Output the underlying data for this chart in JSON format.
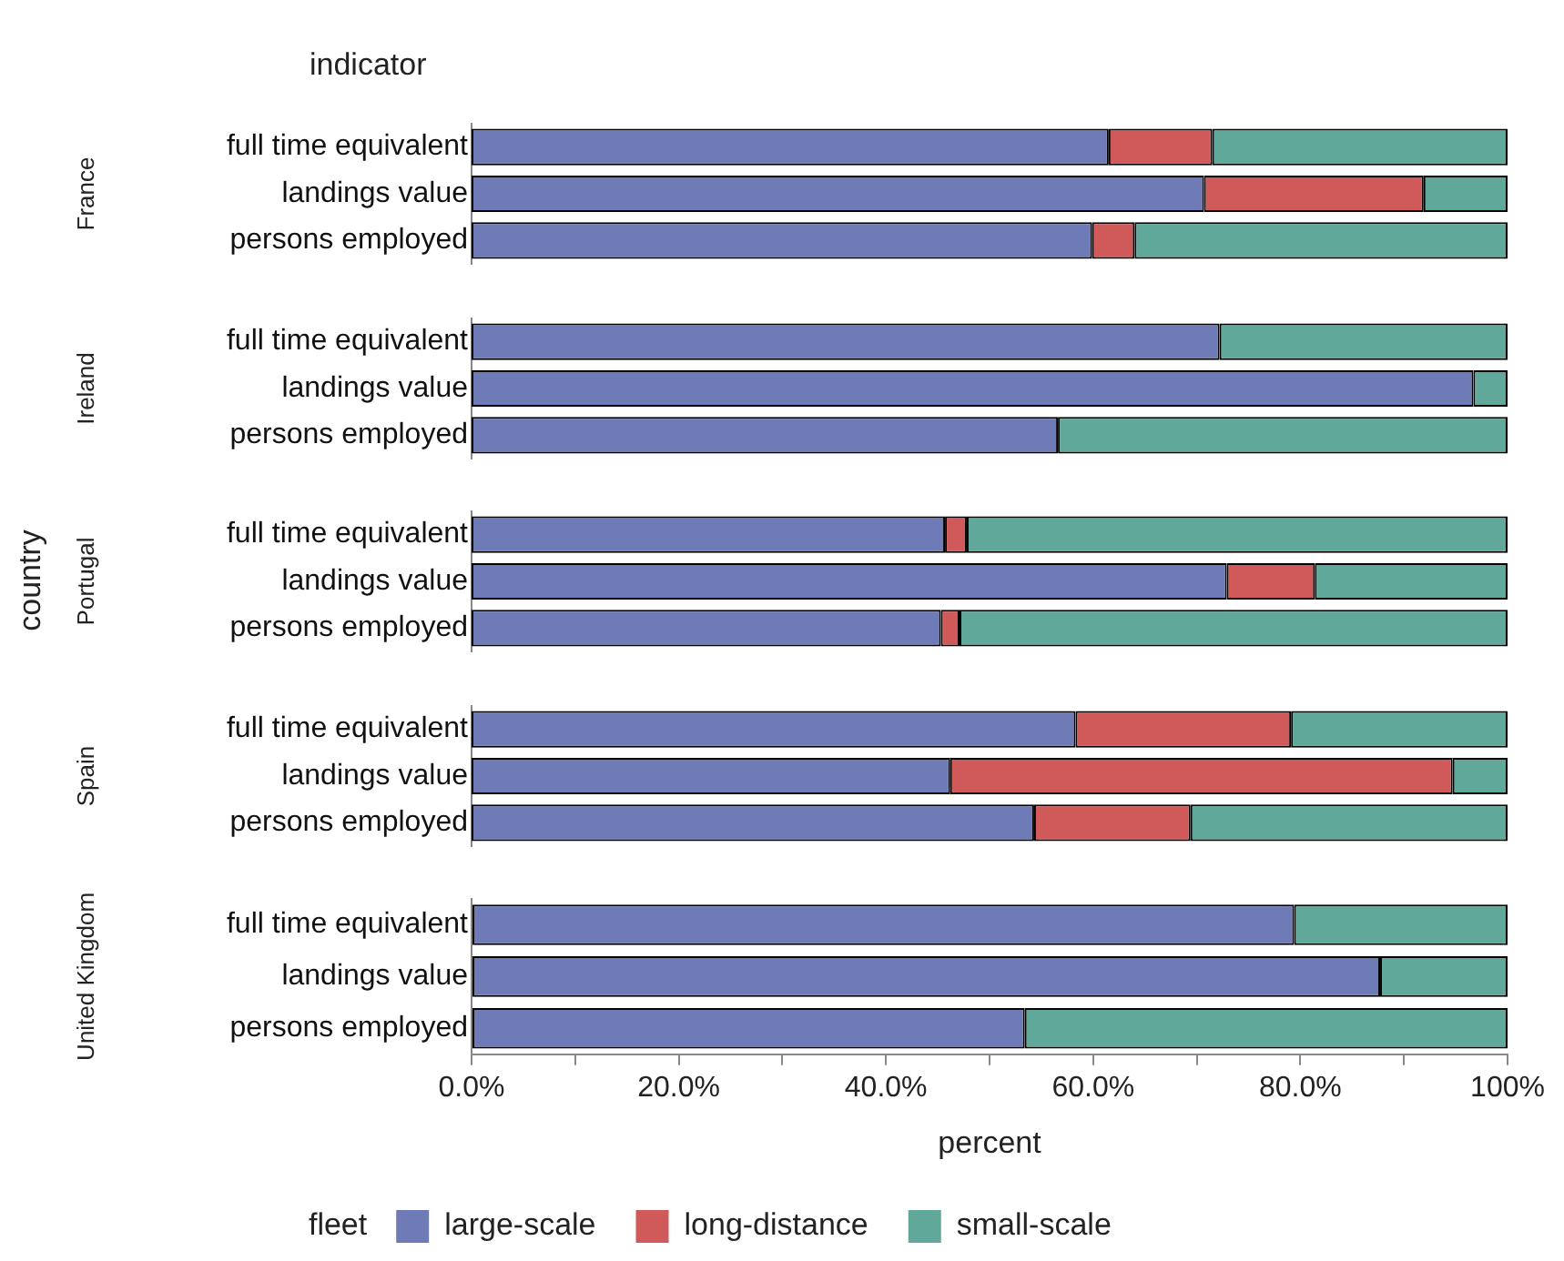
{
  "chart_data": [
    {
      "type": "bar",
      "orientation": "horizontal",
      "stacked": true,
      "title": "France",
      "annotations": [
        "indicator"
      ],
      "categories": [
        "full time equivalent",
        "landings value",
        "persons employed"
      ],
      "series": [
        {
          "color": "#6f7bb7",
          "values": [
            61.5,
            70.7,
            59.9
          ]
        },
        {
          "color": "#d05a5a",
          "values": [
            10.0,
            21.2,
            4.1
          ]
        },
        {
          "color": "#5fa89a",
          "values": [
            28.5,
            8.1,
            36.0
          ]
        }
      ],
      "xlim": [
        0,
        100
      ],
      "tick_labels": "y"
    },
    {
      "type": "bar",
      "orientation": "horizontal",
      "stacked": true,
      "title": "Ireland",
      "categories": [
        "full time equivalent",
        "landings value",
        "persons employed"
      ],
      "series": [
        {
          "color": "#6f7bb7",
          "values": [
            72.2,
            96.7,
            56.6
          ]
        },
        {
          "color": "#d05a5a",
          "values": [
            0,
            0,
            0
          ]
        },
        {
          "color": "#5fa89a",
          "values": [
            27.8,
            3.3,
            43.4
          ]
        }
      ],
      "xlim": [
        0,
        100
      ],
      "tick_labels": "y"
    },
    {
      "type": "bar",
      "orientation": "horizontal",
      "stacked": true,
      "title": "Portugal",
      "ylabel": "country",
      "categories": [
        "full time equivalent",
        "landings value",
        "persons employed"
      ],
      "series": [
        {
          "color": "#6f7bb7",
          "values": [
            45.7,
            72.9,
            45.3
          ]
        },
        {
          "color": "#d05a5a",
          "values": [
            2.1,
            8.5,
            1.8
          ]
        },
        {
          "color": "#5fa89a",
          "values": [
            52.2,
            18.6,
            52.9
          ]
        }
      ],
      "xlim": [
        0,
        100
      ],
      "tick_labels": "y"
    },
    {
      "type": "bar",
      "orientation": "horizontal",
      "stacked": true,
      "title": "Spain",
      "categories": [
        "full time equivalent",
        "landings value",
        "persons employed"
      ],
      "series": [
        {
          "color": "#6f7bb7",
          "values": [
            58.3,
            46.2,
            54.3
          ]
        },
        {
          "color": "#d05a5a",
          "values": [
            20.8,
            48.5,
            15.1
          ]
        },
        {
          "color": "#5fa89a",
          "values": [
            20.9,
            5.3,
            30.6
          ]
        }
      ],
      "xlim": [
        0,
        100
      ],
      "tick_labels": "y"
    },
    {
      "type": "bar",
      "orientation": "horizontal",
      "stacked": true,
      "title": "United Kingdom",
      "xlabel": "percent",
      "legend": "bottom",
      "legend_title": "fleet",
      "categories": [
        "full time equivalent",
        "landings value",
        "persons employed"
      ],
      "series": [
        {
          "name": "large-scale",
          "color": "#6f7bb7",
          "values": [
            79.4,
            87.7,
            53.4
          ]
        },
        {
          "name": "long-distance",
          "color": "#d05a5a",
          "values": [
            0,
            0,
            0
          ]
        },
        {
          "name": "small-scale",
          "color": "#5fa89a",
          "values": [
            20.6,
            12.3,
            46.6
          ]
        }
      ],
      "xlim": [
        0,
        100
      ],
      "xticks": [
        {
          "value": 0,
          "label": "0.0%"
        },
        {
          "value": 10,
          "label": null
        },
        {
          "value": 20,
          "label": "20.0%"
        },
        {
          "value": 30,
          "label": null
        },
        {
          "value": 40,
          "label": "40.0%"
        },
        {
          "value": 50,
          "label": null
        },
        {
          "value": 60,
          "label": "60.0%"
        },
        {
          "value": 70,
          "label": null
        },
        {
          "value": 80,
          "label": "80.0%"
        },
        {
          "value": 90,
          "label": null
        },
        {
          "value": 100,
          "label": "100%"
        }
      ]
    }
  ]
}
